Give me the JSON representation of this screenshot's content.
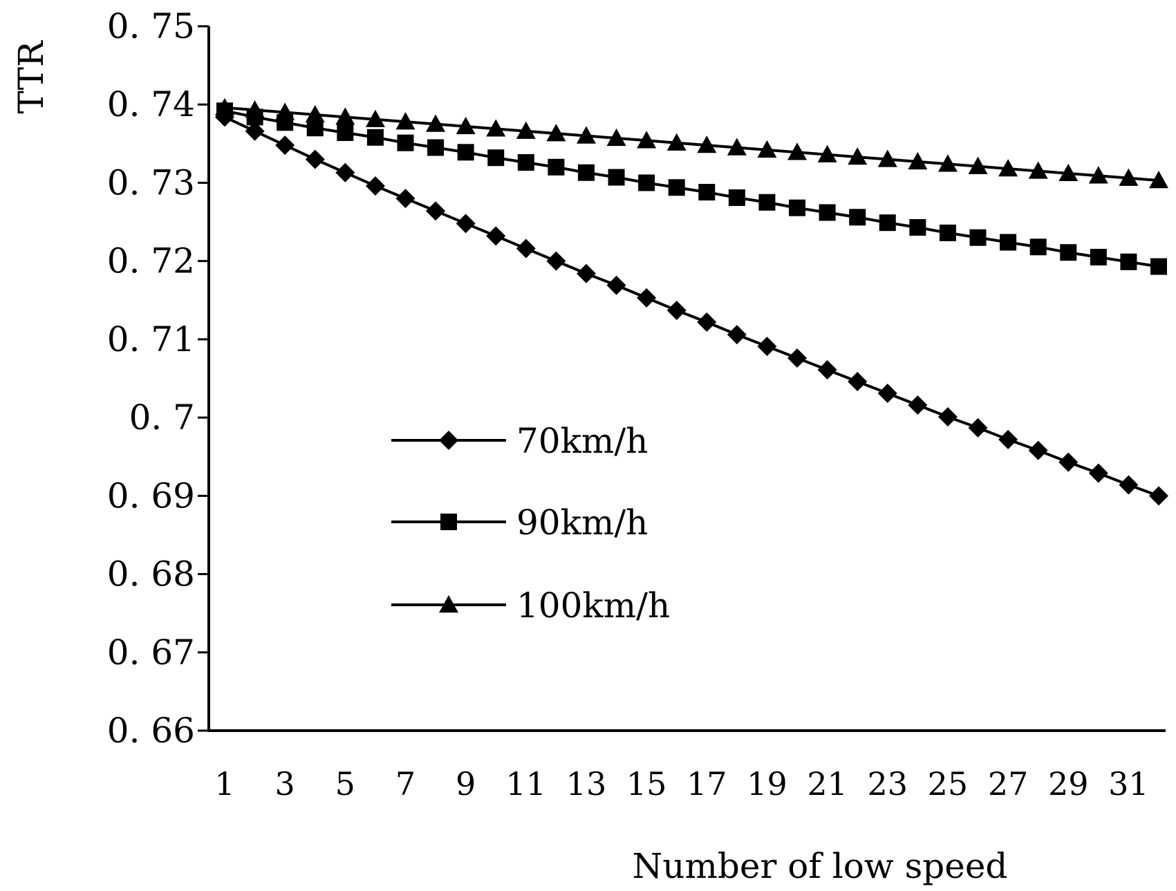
{
  "chart_data": {
    "type": "line",
    "title": "",
    "xlabel": "Number of  low speed",
    "ylabel": "TTR",
    "ylim": [
      0.66,
      0.75
    ],
    "yticks": [
      "0. 66",
      "0. 67",
      "0. 68",
      "0. 69",
      "0. 7",
      "0. 71",
      "0. 72",
      "0. 73",
      "0. 74",
      "0. 75"
    ],
    "ytick_values": [
      0.66,
      0.67,
      0.68,
      0.69,
      0.7,
      0.71,
      0.72,
      0.73,
      0.74,
      0.75
    ],
    "x": [
      1,
      2,
      3,
      4,
      5,
      6,
      7,
      8,
      9,
      10,
      11,
      12,
      13,
      14,
      15,
      16,
      17,
      18,
      19,
      20,
      21,
      22,
      23,
      24,
      25,
      26,
      27,
      28,
      29,
      30,
      31,
      32
    ],
    "xtick_labels": [
      "1",
      "3",
      "5",
      "7",
      "9",
      "11",
      "13",
      "15",
      "17",
      "19",
      "21",
      "23",
      "25",
      "27",
      "29",
      "31"
    ],
    "xtick_values": [
      1,
      3,
      5,
      7,
      9,
      11,
      13,
      15,
      17,
      19,
      21,
      23,
      25,
      27,
      29,
      31
    ],
    "legend_position": "center-left",
    "series": [
      {
        "name": "70km/h",
        "marker": "diamond",
        "values": [
          0.7384,
          0.7366,
          0.7348,
          0.733,
          0.7313,
          0.7296,
          0.728,
          0.7264,
          0.7248,
          0.7232,
          0.7216,
          0.72,
          0.7184,
          0.7169,
          0.7153,
          0.7137,
          0.7122,
          0.7106,
          0.7091,
          0.7076,
          0.7061,
          0.7046,
          0.7031,
          0.7016,
          0.7001,
          0.6987,
          0.6972,
          0.6958,
          0.6943,
          0.6929,
          0.6914,
          0.69
        ]
      },
      {
        "name": "90km/h",
        "marker": "square",
        "values": [
          0.7392,
          0.7384,
          0.7377,
          0.737,
          0.7364,
          0.7358,
          0.7351,
          0.7345,
          0.7339,
          0.7332,
          0.7326,
          0.732,
          0.7313,
          0.7307,
          0.73,
          0.7294,
          0.7288,
          0.7281,
          0.7275,
          0.7268,
          0.7262,
          0.7256,
          0.7249,
          0.7243,
          0.7236,
          0.723,
          0.7224,
          0.7218,
          0.7211,
          0.7205,
          0.7199,
          0.7193
        ]
      },
      {
        "name": "100km/h",
        "marker": "triangle",
        "values": [
          0.7396,
          0.7393,
          0.739,
          0.7387,
          0.7384,
          0.7381,
          0.7378,
          0.7375,
          0.7372,
          0.7369,
          0.7366,
          0.7363,
          0.736,
          0.7357,
          0.7354,
          0.7351,
          0.7348,
          0.7345,
          0.7342,
          0.7339,
          0.7336,
          0.7333,
          0.733,
          0.7327,
          0.7324,
          0.7321,
          0.7318,
          0.7315,
          0.7312,
          0.7309,
          0.7306,
          0.7303
        ]
      }
    ]
  }
}
